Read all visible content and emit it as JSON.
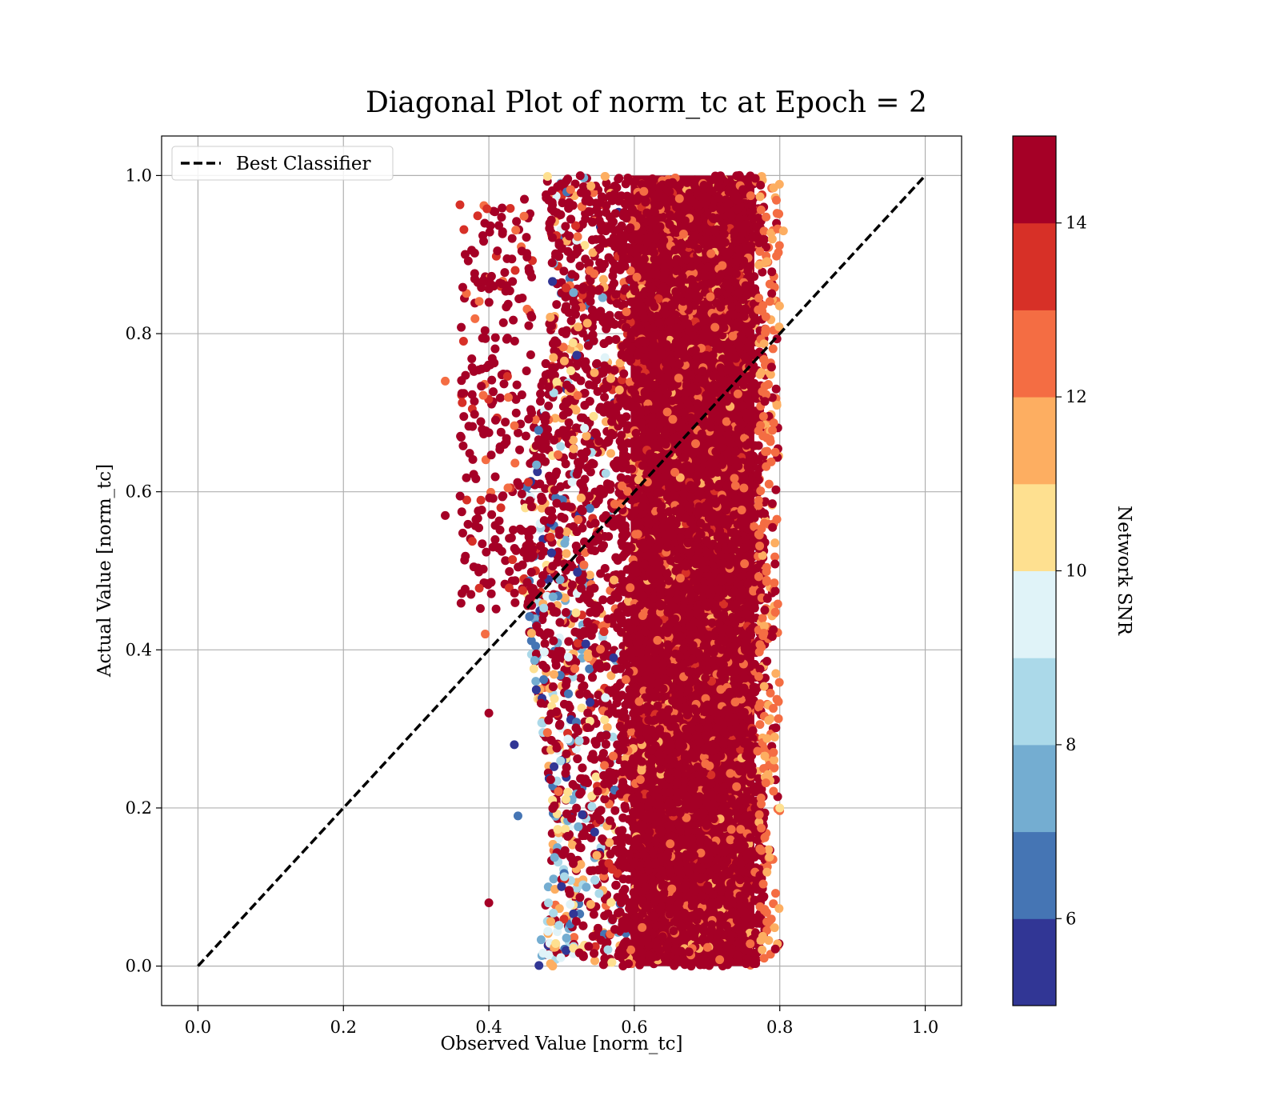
{
  "chart_data": {
    "type": "scatter",
    "title": "Diagonal Plot of norm_tc at Epoch = 2",
    "xlabel": "Observed Value [norm_tc]",
    "ylabel": "Actual Value [norm_tc]",
    "xlim": [
      -0.05,
      1.05
    ],
    "ylim": [
      -0.05,
      1.05
    ],
    "xticks": [
      "0.0",
      "0.2",
      "0.4",
      "0.6",
      "0.8",
      "1.0"
    ],
    "yticks": [
      "0.0",
      "0.2",
      "0.4",
      "0.6",
      "0.8",
      "1.0"
    ],
    "grid": true,
    "legend": {
      "position": "top-left",
      "entries": [
        {
          "label": "Best Classifier",
          "style": "dashed",
          "color": "#000000"
        }
      ]
    },
    "reference_line": {
      "name": "Best Classifier",
      "x": [
        0.0,
        1.0
      ],
      "y": [
        0.0,
        1.0
      ]
    },
    "point_clusters": [
      {
        "snr": "high",
        "x_range": [
          0.58,
          0.78
        ],
        "y_range": [
          0.0,
          1.0
        ],
        "density": "very dense"
      },
      {
        "snr": "mixed",
        "x_range": [
          0.46,
          0.6
        ],
        "y_range": [
          0.0,
          1.0
        ],
        "density": "dense"
      },
      {
        "snr": "high",
        "x_range": [
          0.34,
          0.46
        ],
        "y_range": [
          0.08,
          0.97
        ],
        "density": "sparse"
      }
    ],
    "colorbar": {
      "label": "Network SNR",
      "range": [
        5,
        15
      ],
      "tick_labels": [
        "6",
        "8",
        "10",
        "12",
        "14"
      ],
      "tick_values": [
        6,
        8,
        10,
        12,
        14
      ],
      "colors": [
        "#313695",
        "#4575b4",
        "#74add1",
        "#abd9e9",
        "#e0f3f8",
        "#fee090",
        "#fdae61",
        "#f46d43",
        "#d73027",
        "#a50026"
      ]
    },
    "series_color_high": "#a50026"
  }
}
